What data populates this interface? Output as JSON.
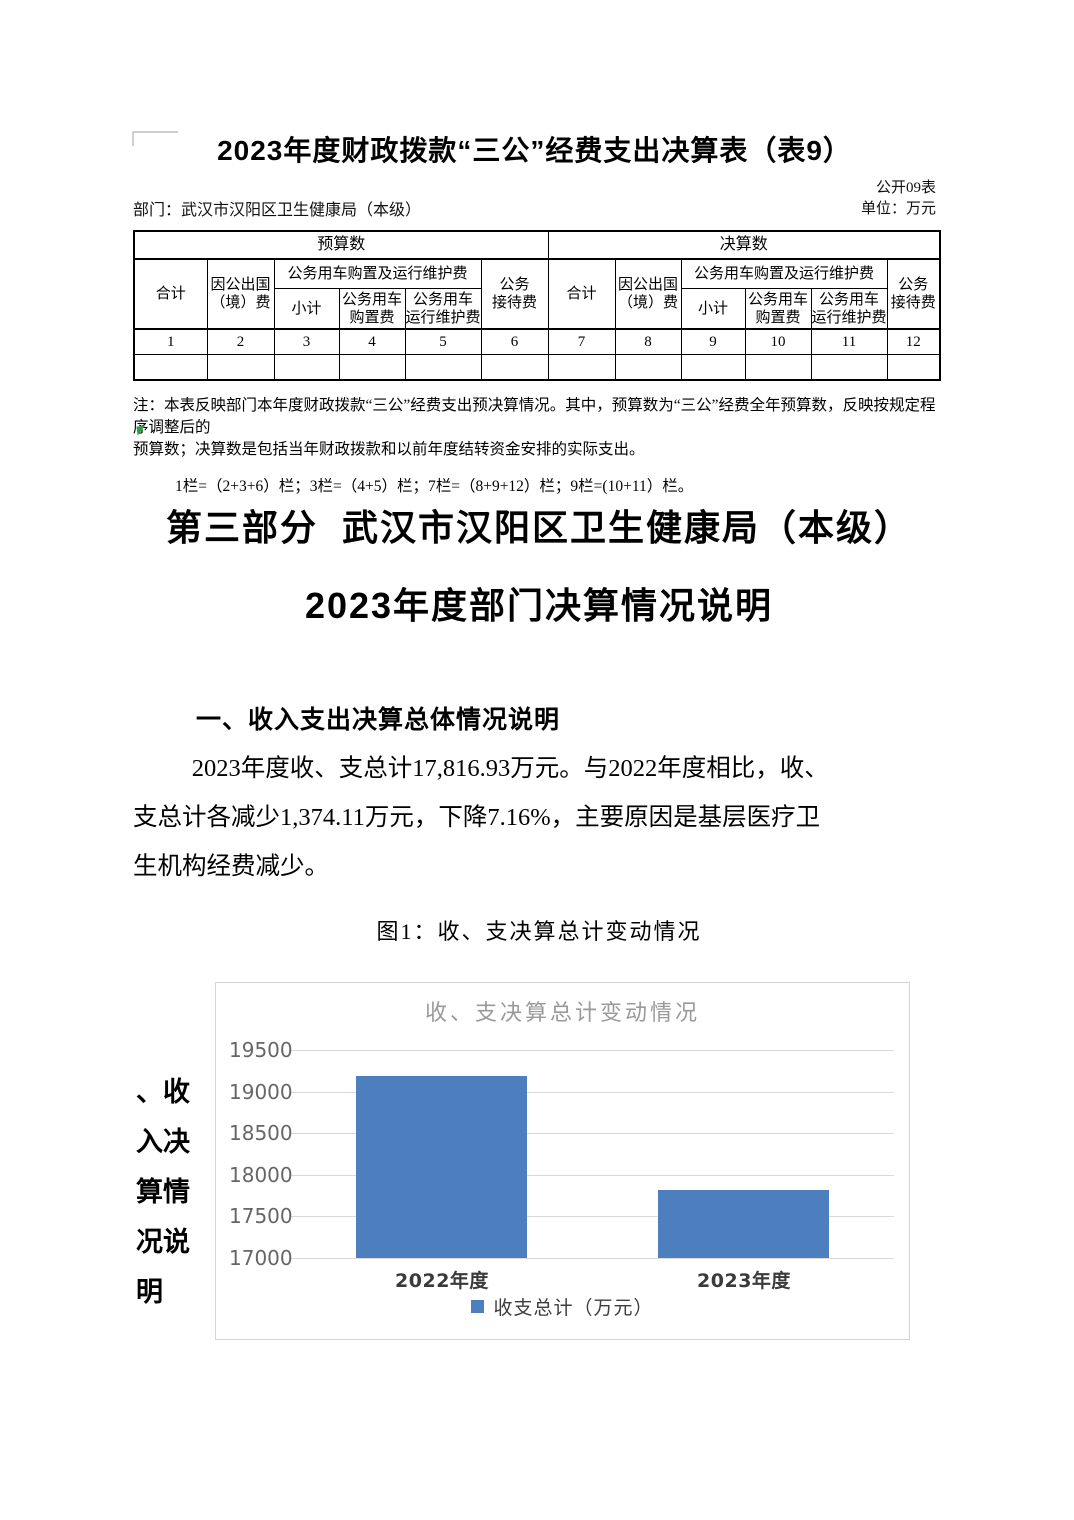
{
  "document": {
    "table_section": {
      "title": "2023年度财政拨款“三公”经费支出决算表（表9）",
      "department": "部门：武汉市汉阳区卫生健康局（本级）",
      "table_code": "公开09表",
      "unit": "单位：万元",
      "group_headers": [
        "预算数",
        "决算数"
      ],
      "columns": {
        "total": "合计",
        "abroad": "因公出国\n（境）费",
        "vehicle_group": "公务用车购置及运行维护费",
        "subtotal": "小计",
        "purchase": "公务用车\n购置费",
        "maintenance": "公务用车\n运行维护费",
        "reception": "公务\n接待费"
      },
      "col_numbers": [
        "1",
        "2",
        "3",
        "4",
        "5",
        "6",
        "7",
        "8",
        "9",
        "10",
        "11",
        "12"
      ],
      "data_row": [
        "",
        "",
        "",
        "",
        "",
        "",
        "",
        "",
        "",
        "",
        "",
        ""
      ],
      "note": "注：本表反映部门本年度财政拨款“三公”经费支出预决算情况。其中，预算数为“三公”经费全年预算数，反映按规定程序调整后的\n预算数；决算数是包括当年财政拨款和以前年度结转资金安排的实际支出。",
      "formula": "1栏=（2+3+6）栏；3栏=（4+5）栏；7栏=（8+9+12）栏；9栏=(10+11）栏。"
    },
    "part_heading_line1": "第三部分  武汉市汉阳区卫生健康局（本级）",
    "part_heading_line2": "2023年度部门决算情况说明",
    "section_heading": "一、收入支出决算总体情况说明",
    "paragraph": "2023年度收、支总计17,816.93万元。与2022年度相比，收、\n支总计各减少1,374.11万元，下降7.16%，主要原因是基层医疗卫\n生机构经费减少。",
    "figure_caption": "图1：收、支决算总计变动情况",
    "side_text_lines": [
      "、收",
      "入决",
      "算情",
      "况说",
      "明"
    ]
  },
  "chart_data": {
    "type": "bar",
    "title": "收、支决算总计变动情况",
    "categories": [
      "2022年度",
      "2023年度"
    ],
    "series": [
      {
        "name": "收支总计（万元）",
        "values": [
          19191.04,
          17816.93
        ]
      }
    ],
    "legend": [
      "收支总计（万元）"
    ],
    "legend_position": "bottom",
    "xlabel": "",
    "ylabel": "",
    "ylim": [
      17000,
      19500
    ],
    "yticks": [
      17000,
      17500,
      18000,
      18500,
      19000,
      19500
    ],
    "grid": true,
    "bar_color": "#4d7ebe",
    "gridline_color": "#d9d9d9",
    "title_color": "#9a9a9a"
  }
}
